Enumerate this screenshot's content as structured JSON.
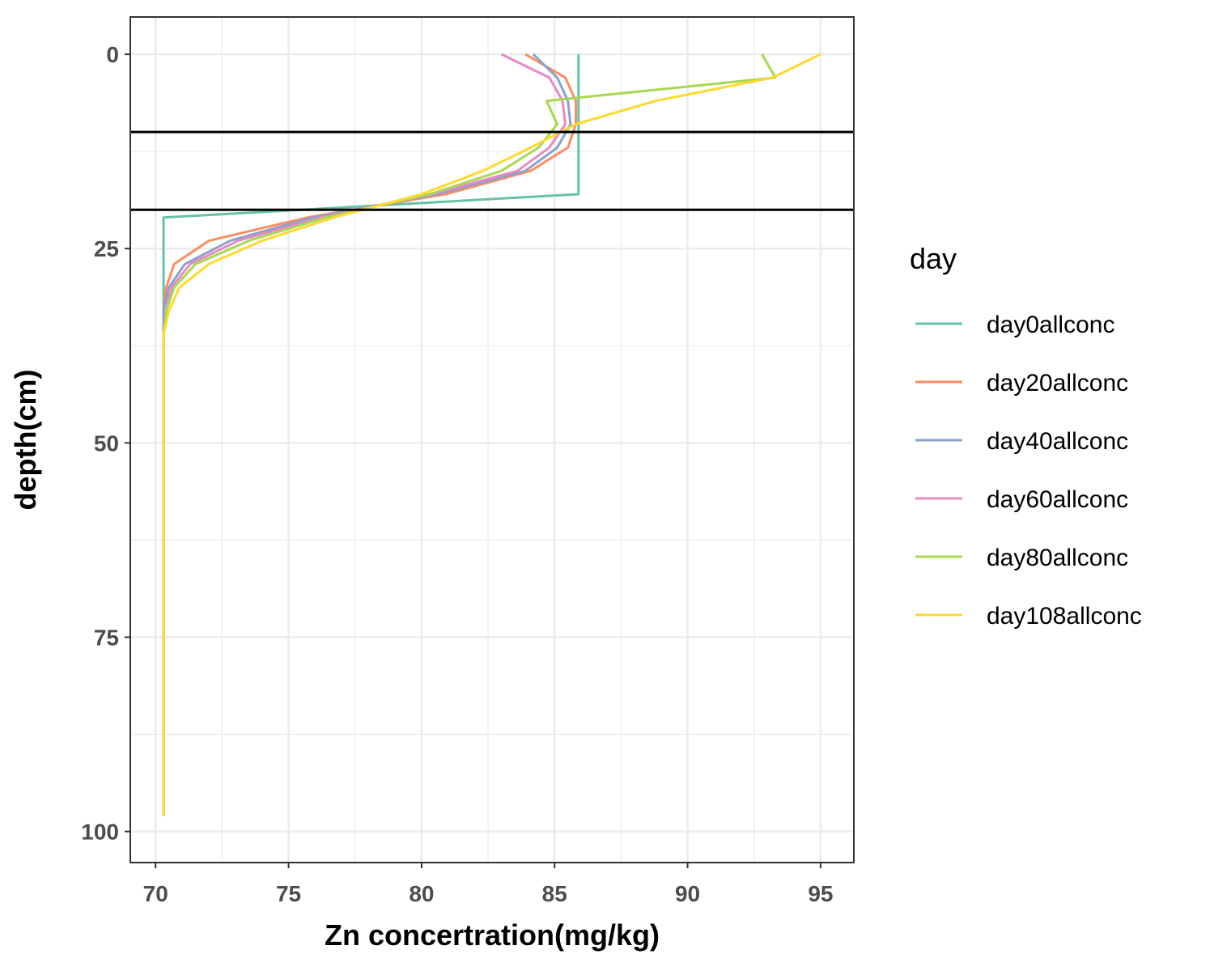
{
  "chart_data": {
    "type": "line",
    "xlabel": "Zn concertration(mg/kg)",
    "ylabel": "depth(cm)",
    "xlim": [
      69.05,
      96.25
    ],
    "ylim": [
      -4.8,
      104.0
    ],
    "y_reversed": true,
    "x_ticks": [
      70,
      75,
      80,
      85,
      90,
      95
    ],
    "y_ticks": [
      0,
      25,
      50,
      75,
      100
    ],
    "x_tick_labels": [
      "70",
      "75",
      "80",
      "85",
      "90",
      "95"
    ],
    "y_tick_labels": [
      "0",
      "25",
      "50",
      "75",
      "100"
    ],
    "grid": true,
    "hlines": [
      10,
      20
    ],
    "legend": {
      "title": "day",
      "position": "right"
    },
    "series": [
      {
        "name": "day0allconc",
        "color": "#66c2a5",
        "x": [
          85.9,
          85.9,
          85.9,
          85.9,
          85.9,
          85.9,
          85.9,
          70.3,
          70.3,
          70.3,
          70.3,
          70.3,
          70.3,
          70.3,
          70.3,
          70.3
        ],
        "y": [
          0,
          3,
          6,
          9,
          12,
          15,
          18,
          21,
          24,
          27,
          30,
          33,
          36,
          50,
          75,
          98
        ]
      },
      {
        "name": "day20allconc",
        "color": "#fc8d62",
        "x": [
          83.9,
          85.4,
          85.8,
          85.8,
          85.5,
          84.1,
          80.9,
          75.7,
          72.0,
          70.7,
          70.4,
          70.3,
          70.3,
          70.3,
          70.3,
          70.3
        ],
        "y": [
          0,
          3,
          6,
          9,
          12,
          15,
          18,
          21,
          24,
          27,
          30,
          33,
          36,
          50,
          75,
          98
        ]
      },
      {
        "name": "day40allconc",
        "color": "#8da0cb",
        "x": [
          84.2,
          85.1,
          85.5,
          85.6,
          85.1,
          83.9,
          80.6,
          75.9,
          72.8,
          71.1,
          70.5,
          70.3,
          70.3,
          70.3,
          70.3,
          70.3
        ],
        "y": [
          0,
          3,
          6,
          9,
          12,
          15,
          18,
          21,
          24,
          27,
          30,
          33,
          36,
          50,
          75,
          98
        ]
      },
      {
        "name": "day60allconc",
        "color": "#e78ac3",
        "x": [
          83.0,
          84.8,
          85.3,
          85.4,
          84.8,
          83.6,
          80.4,
          76.2,
          73.1,
          71.3,
          70.6,
          70.4,
          70.3,
          70.3,
          70.3,
          70.3
        ],
        "y": [
          0,
          3,
          6,
          9,
          12,
          15,
          18,
          21,
          24,
          27,
          30,
          33,
          36,
          50,
          75,
          98
        ]
      },
      {
        "name": "day80allconc",
        "color": "#a6d854",
        "x": [
          92.8,
          93.3,
          84.7,
          85.1,
          84.4,
          83.0,
          80.3,
          76.4,
          73.5,
          71.5,
          70.7,
          70.4,
          70.3,
          70.3,
          70.3,
          70.3
        ],
        "y": [
          0,
          3,
          6,
          9,
          12,
          15,
          18,
          21,
          24,
          27,
          30,
          33,
          36,
          50,
          75,
          98
        ]
      },
      {
        "name": "day108allconc",
        "color": "#ffd92f",
        "x": [
          95.0,
          93.2,
          88.8,
          85.8,
          84.1,
          82.3,
          80.0,
          76.7,
          74.0,
          72.0,
          70.9,
          70.5,
          70.3,
          70.3,
          70.3,
          70.3
        ],
        "y": [
          0,
          3,
          6,
          9,
          12,
          15,
          18,
          21,
          24,
          27,
          30,
          33,
          36,
          50,
          75,
          98
        ]
      }
    ]
  }
}
